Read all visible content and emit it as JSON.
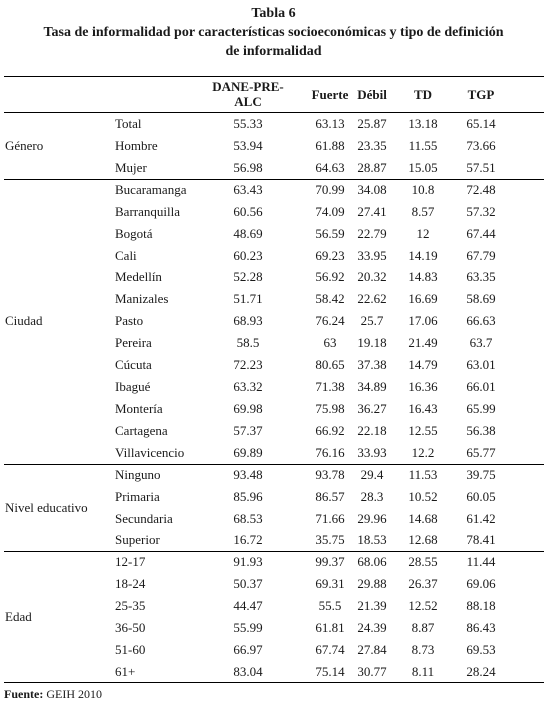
{
  "title": {
    "line1": "Tabla 6",
    "line2": "Tasa de informalidad por características socioeconómicas y tipo de definición",
    "line3": "de informalidad"
  },
  "columns": {
    "c1_line1": "DANE-PRE-",
    "c1_line2": "ALC",
    "c2": "Fuerte",
    "c3": "Débil",
    "c4": "TD",
    "c5": "TGP"
  },
  "groups": [
    {
      "name": "Género",
      "rows": [
        {
          "label": "Total",
          "values": [
            "55.33",
            "63.13",
            "25.87",
            "13.18",
            "65.14"
          ]
        },
        {
          "label": "Hombre",
          "values": [
            "53.94",
            "61.88",
            "23.35",
            "11.55",
            "73.66"
          ]
        },
        {
          "label": "Mujer",
          "values": [
            "56.98",
            "64.63",
            "28.87",
            "15.05",
            "57.51"
          ]
        }
      ]
    },
    {
      "name": "Ciudad",
      "rows": [
        {
          "label": "Bucaramanga",
          "values": [
            "63.43",
            "70.99",
            "34.08",
            "10.8",
            "72.48"
          ]
        },
        {
          "label": "Barranquilla",
          "values": [
            "60.56",
            "74.09",
            "27.41",
            "8.57",
            "57.32"
          ]
        },
        {
          "label": "Bogotá",
          "values": [
            "48.69",
            "56.59",
            "22.79",
            "12",
            "67.44"
          ]
        },
        {
          "label": "Cali",
          "values": [
            "60.23",
            "69.23",
            "33.95",
            "14.19",
            "67.79"
          ]
        },
        {
          "label": "Medellín",
          "values": [
            "52.28",
            "56.92",
            "20.32",
            "14.83",
            "63.35"
          ]
        },
        {
          "label": "Manizales",
          "values": [
            "51.71",
            "58.42",
            "22.62",
            "16.69",
            "58.69"
          ]
        },
        {
          "label": "Pasto",
          "values": [
            "68.93",
            "76.24",
            "25.7",
            "17.06",
            "66.63"
          ]
        },
        {
          "label": "Pereira",
          "values": [
            "58.5",
            "63",
            "19.18",
            "21.49",
            "63.7"
          ]
        },
        {
          "label": "Cúcuta",
          "values": [
            "72.23",
            "80.65",
            "37.38",
            "14.79",
            "63.01"
          ]
        },
        {
          "label": "Ibagué",
          "values": [
            "63.32",
            "71.38",
            "34.89",
            "16.36",
            "66.01"
          ]
        },
        {
          "label": "Montería",
          "values": [
            "69.98",
            "75.98",
            "36.27",
            "16.43",
            "65.99"
          ]
        },
        {
          "label": "Cartagena",
          "values": [
            "57.37",
            "66.92",
            "22.18",
            "12.55",
            "56.38"
          ]
        },
        {
          "label": "Villavicencio",
          "values": [
            "69.89",
            "76.16",
            "33.93",
            "12.2",
            "65.77"
          ]
        }
      ]
    },
    {
      "name": "Nivel educativo",
      "rows": [
        {
          "label": "Ninguno",
          "values": [
            "93.48",
            "93.78",
            "29.4",
            "11.53",
            "39.75"
          ]
        },
        {
          "label": "Primaria",
          "values": [
            "85.96",
            "86.57",
            "28.3",
            "10.52",
            "60.05"
          ]
        },
        {
          "label": "Secundaria",
          "values": [
            "68.53",
            "71.66",
            "29.96",
            "14.68",
            "61.42"
          ]
        },
        {
          "label": "Superior",
          "values": [
            "16.72",
            "35.75",
            "18.53",
            "12.68",
            "78.41"
          ]
        }
      ]
    },
    {
      "name": "Edad",
      "rows": [
        {
          "label": "12-17",
          "values": [
            "91.93",
            "99.37",
            "68.06",
            "28.55",
            "11.44"
          ]
        },
        {
          "label": "18-24",
          "values": [
            "50.37",
            "69.31",
            "29.88",
            "26.37",
            "69.06"
          ]
        },
        {
          "label": "25-35",
          "values": [
            "44.47",
            "55.5",
            "21.39",
            "12.52",
            "88.18"
          ]
        },
        {
          "label": "36-50",
          "values": [
            "55.99",
            "61.81",
            "24.39",
            "8.87",
            "86.43"
          ]
        },
        {
          "label": "51-60",
          "values": [
            "66.97",
            "67.74",
            "27.84",
            "8.73",
            "69.53"
          ]
        },
        {
          "label": "61+",
          "values": [
            "83.04",
            "75.14",
            "30.77",
            "8.11",
            "28.24"
          ]
        }
      ]
    }
  ],
  "footer": {
    "label": "Fuente:",
    "text": " GEIH 2010"
  }
}
